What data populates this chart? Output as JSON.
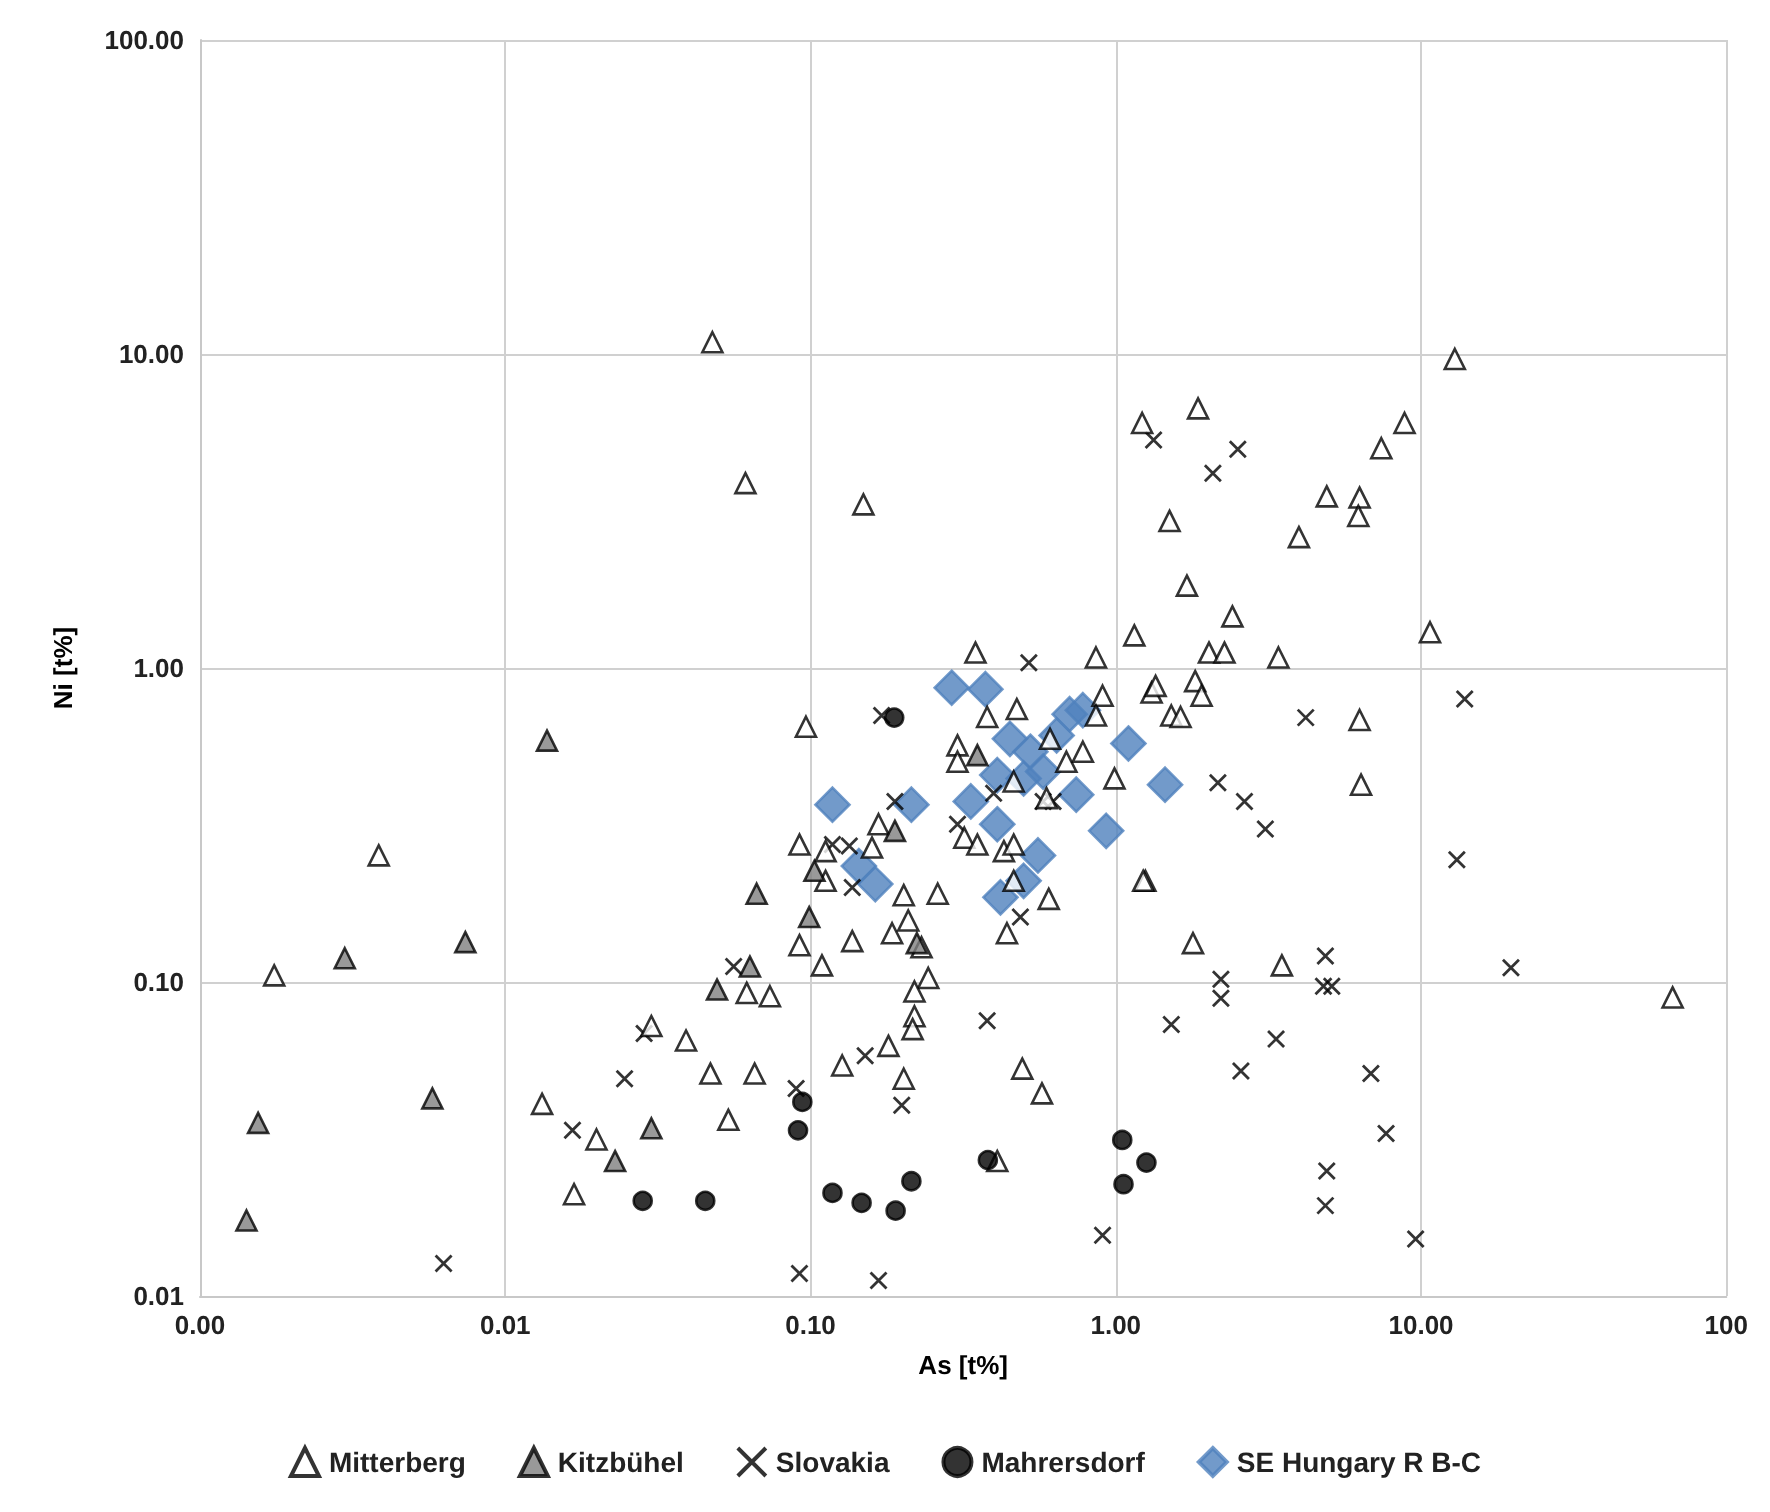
{
  "chart_data": {
    "type": "scatter",
    "xlabel": "As [t%]",
    "ylabel": "Ni [t%]",
    "log": "xy",
    "grid": true,
    "legend": "bottom",
    "xlim": [
      0.001,
      100
    ],
    "xticks": [
      {
        "value": 0.001,
        "label": "0.00"
      },
      0.01,
      {
        "value": 0.1,
        "label": "0.10"
      },
      {
        "value": 1,
        "label": "1.00"
      },
      {
        "value": 10,
        "label": "10.00"
      },
      100
    ],
    "ylim": [
      0.01,
      100
    ],
    "yticks": [
      0.01,
      {
        "value": 0.1,
        "label": "0.10"
      },
      {
        "value": 1,
        "label": "1.00"
      },
      {
        "value": 10,
        "label": "10.00"
      },
      {
        "value": 100,
        "label": "100.00"
      }
    ],
    "series": [
      {
        "name": "Mitterberg",
        "color": "#ffffff",
        "marker": "triangle",
        "x": [
          0.0477,
          0.0612,
          0.149,
          1.22,
          1.5,
          1.15,
          0.347,
          0.861,
          0.0966,
          12.9,
          1.86,
          8.83,
          7.41,
          4.91,
          6.29,
          6.23,
          3.98,
          1.71,
          2.41,
          2.02,
          2.27,
          3.41,
          10.7,
          6.29,
          1.82,
          1.91,
          1.52,
          1.63,
          6.36,
          1.25,
          1.79,
          3.5,
          66.7,
          1.31,
          1.35,
          0.905,
          0.379,
          0.474,
          0.861,
          0.303,
          0.303,
          0.609,
          0.689,
          0.78,
          0.99,
          0.593,
          0.463,
          0.319,
          0.352,
          0.43,
          0.463,
          0.463,
          0.603,
          0.44,
          1.23,
          0.167,
          0.159,
          0.092,
          0.112,
          0.112,
          0.202,
          0.261,
          0.209,
          0.185,
          0.137,
          0.092,
          0.109,
          0.231,
          0.243,
          0.219,
          0.0618,
          0.0736,
          0.219,
          0.216,
          0.18,
          0.127,
          0.202,
          0.494,
          0.573,
          0.409,
          0.0391,
          0.0301,
          0.047,
          0.0656,
          0.0538,
          0.0199,
          0.0168,
          0.0132,
          0.00385,
          0.00175
        ],
        "values": [
          10.9,
          3.88,
          3.32,
          6.03,
          2.94,
          1.27,
          1.12,
          1.08,
          0.65,
          9.64,
          6.71,
          6.03,
          5.01,
          3.52,
          3.49,
          3.05,
          2.61,
          1.83,
          1.46,
          1.12,
          1.12,
          1.08,
          1.3,
          0.683,
          0.908,
          0.816,
          0.706,
          0.698,
          0.425,
          0.21,
          0.133,
          0.113,
          0.0893,
          0.836,
          0.877,
          0.816,
          0.698,
          0.74,
          0.706,
          0.567,
          0.503,
          0.595,
          0.503,
          0.541,
          0.445,
          0.385,
          0.435,
          0.288,
          0.274,
          0.261,
          0.274,
          0.21,
          0.184,
          0.143,
          0.21,
          0.318,
          0.268,
          0.274,
          0.261,
          0.21,
          0.189,
          0.191,
          0.157,
          0.143,
          0.135,
          0.131,
          0.113,
          0.129,
          0.103,
          0.0933,
          0.0923,
          0.0901,
          0.0778,
          0.0708,
          0.0626,
          0.0542,
          0.0492,
          0.053,
          0.0442,
          0.0269,
          0.0651,
          0.0724,
          0.0511,
          0.0511,
          0.0364,
          0.0315,
          0.0211,
          0.0409,
          0.253,
          0.105
        ]
      },
      {
        "name": "Kitzbühel",
        "color": "#7f7f7f",
        "marker": "triangle",
        "x": [
          0.0137,
          0.00298,
          0.0074,
          0.00577,
          0.00155,
          0.00142,
          0.0666,
          0.099,
          0.103,
          0.0633,
          0.0494,
          0.223,
          0.189,
          0.0301,
          0.0229,
          0.352
        ],
        "values": [
          0.587,
          0.119,
          0.134,
          0.0426,
          0.0356,
          0.0174,
          0.191,
          0.161,
          0.226,
          0.112,
          0.0946,
          0.133,
          0.303,
          0.0342,
          0.0269,
          0.528
        ]
      },
      {
        "name": "Slovakia",
        "color": "#000000",
        "marker": "cross",
        "x": [
          1.33,
          0.519,
          0.171,
          2.51,
          2.08,
          4.19,
          13.9,
          2.16,
          2.64,
          3.09,
          13.1,
          4.86,
          19.7,
          2.21,
          2.21,
          4.79,
          5.1,
          1.52,
          3.35,
          2.57,
          6.85,
          7.68,
          4.91,
          4.86,
          9.6,
          0.189,
          0.118,
          0.134,
          0.303,
          0.398,
          0.623,
          0.578,
          0.137,
          0.487,
          0.056,
          0.0285,
          0.0246,
          0.0166,
          0.0897,
          0.151,
          0.199,
          0.379,
          0.905,
          0.092,
          0.167,
          0.00628
        ],
        "values": [
          5.32,
          1.04,
          0.706,
          4.97,
          4.17,
          0.695,
          0.796,
          0.431,
          0.376,
          0.307,
          0.245,
          0.121,
          0.111,
          0.102,
          0.0888,
          0.0969,
          0.0969,
          0.0732,
          0.0658,
          0.0521,
          0.0511,
          0.0329,
          0.025,
          0.0194,
          0.0152,
          0.376,
          0.274,
          0.271,
          0.318,
          0.399,
          0.376,
          0.376,
          0.2,
          0.161,
          0.112,
          0.0685,
          0.0492,
          0.0337,
          0.0458,
          0.0582,
          0.0405,
          0.0753,
          0.0156,
          0.0118,
          0.0112,
          0.0127
        ]
      },
      {
        "name": "Mahrersdorf",
        "color": "#000000",
        "marker": "circle",
        "x": [
          0.188,
          0.094,
          0.091,
          0.0282,
          0.0452,
          0.118,
          0.147,
          0.19,
          0.214,
          0.381,
          1.05,
          1.26,
          1.06
        ],
        "values": [
          0.695,
          0.0415,
          0.0337,
          0.0201,
          0.0201,
          0.0213,
          0.0198,
          0.0187,
          0.0232,
          0.0271,
          0.0314,
          0.0266,
          0.0227
        ]
      },
      {
        "name": "SE Hungary R B-C",
        "color": "#4f81bd",
        "marker": "diamond",
        "x": [
          0.29,
          0.374,
          0.706,
          0.78,
          1.1,
          1.45,
          0.118,
          0.214,
          0.144,
          0.163,
          0.43,
          0.525,
          0.409,
          0.499,
          0.335,
          0.409,
          0.742,
          0.93,
          0.556,
          0.419,
          0.499,
          0.578,
          0.64,
          0.45
        ],
        "values": [
          0.865,
          0.856,
          0.713,
          0.734,
          0.575,
          0.425,
          0.367,
          0.367,
          0.234,
          0.205,
          null,
          0.541,
          0.456,
          0.445,
          0.376,
          0.318,
          0.395,
          0.303,
          0.253,
          0.186,
          0.21,
          0.468,
          0.61,
          0.595
        ]
      }
    ]
  }
}
